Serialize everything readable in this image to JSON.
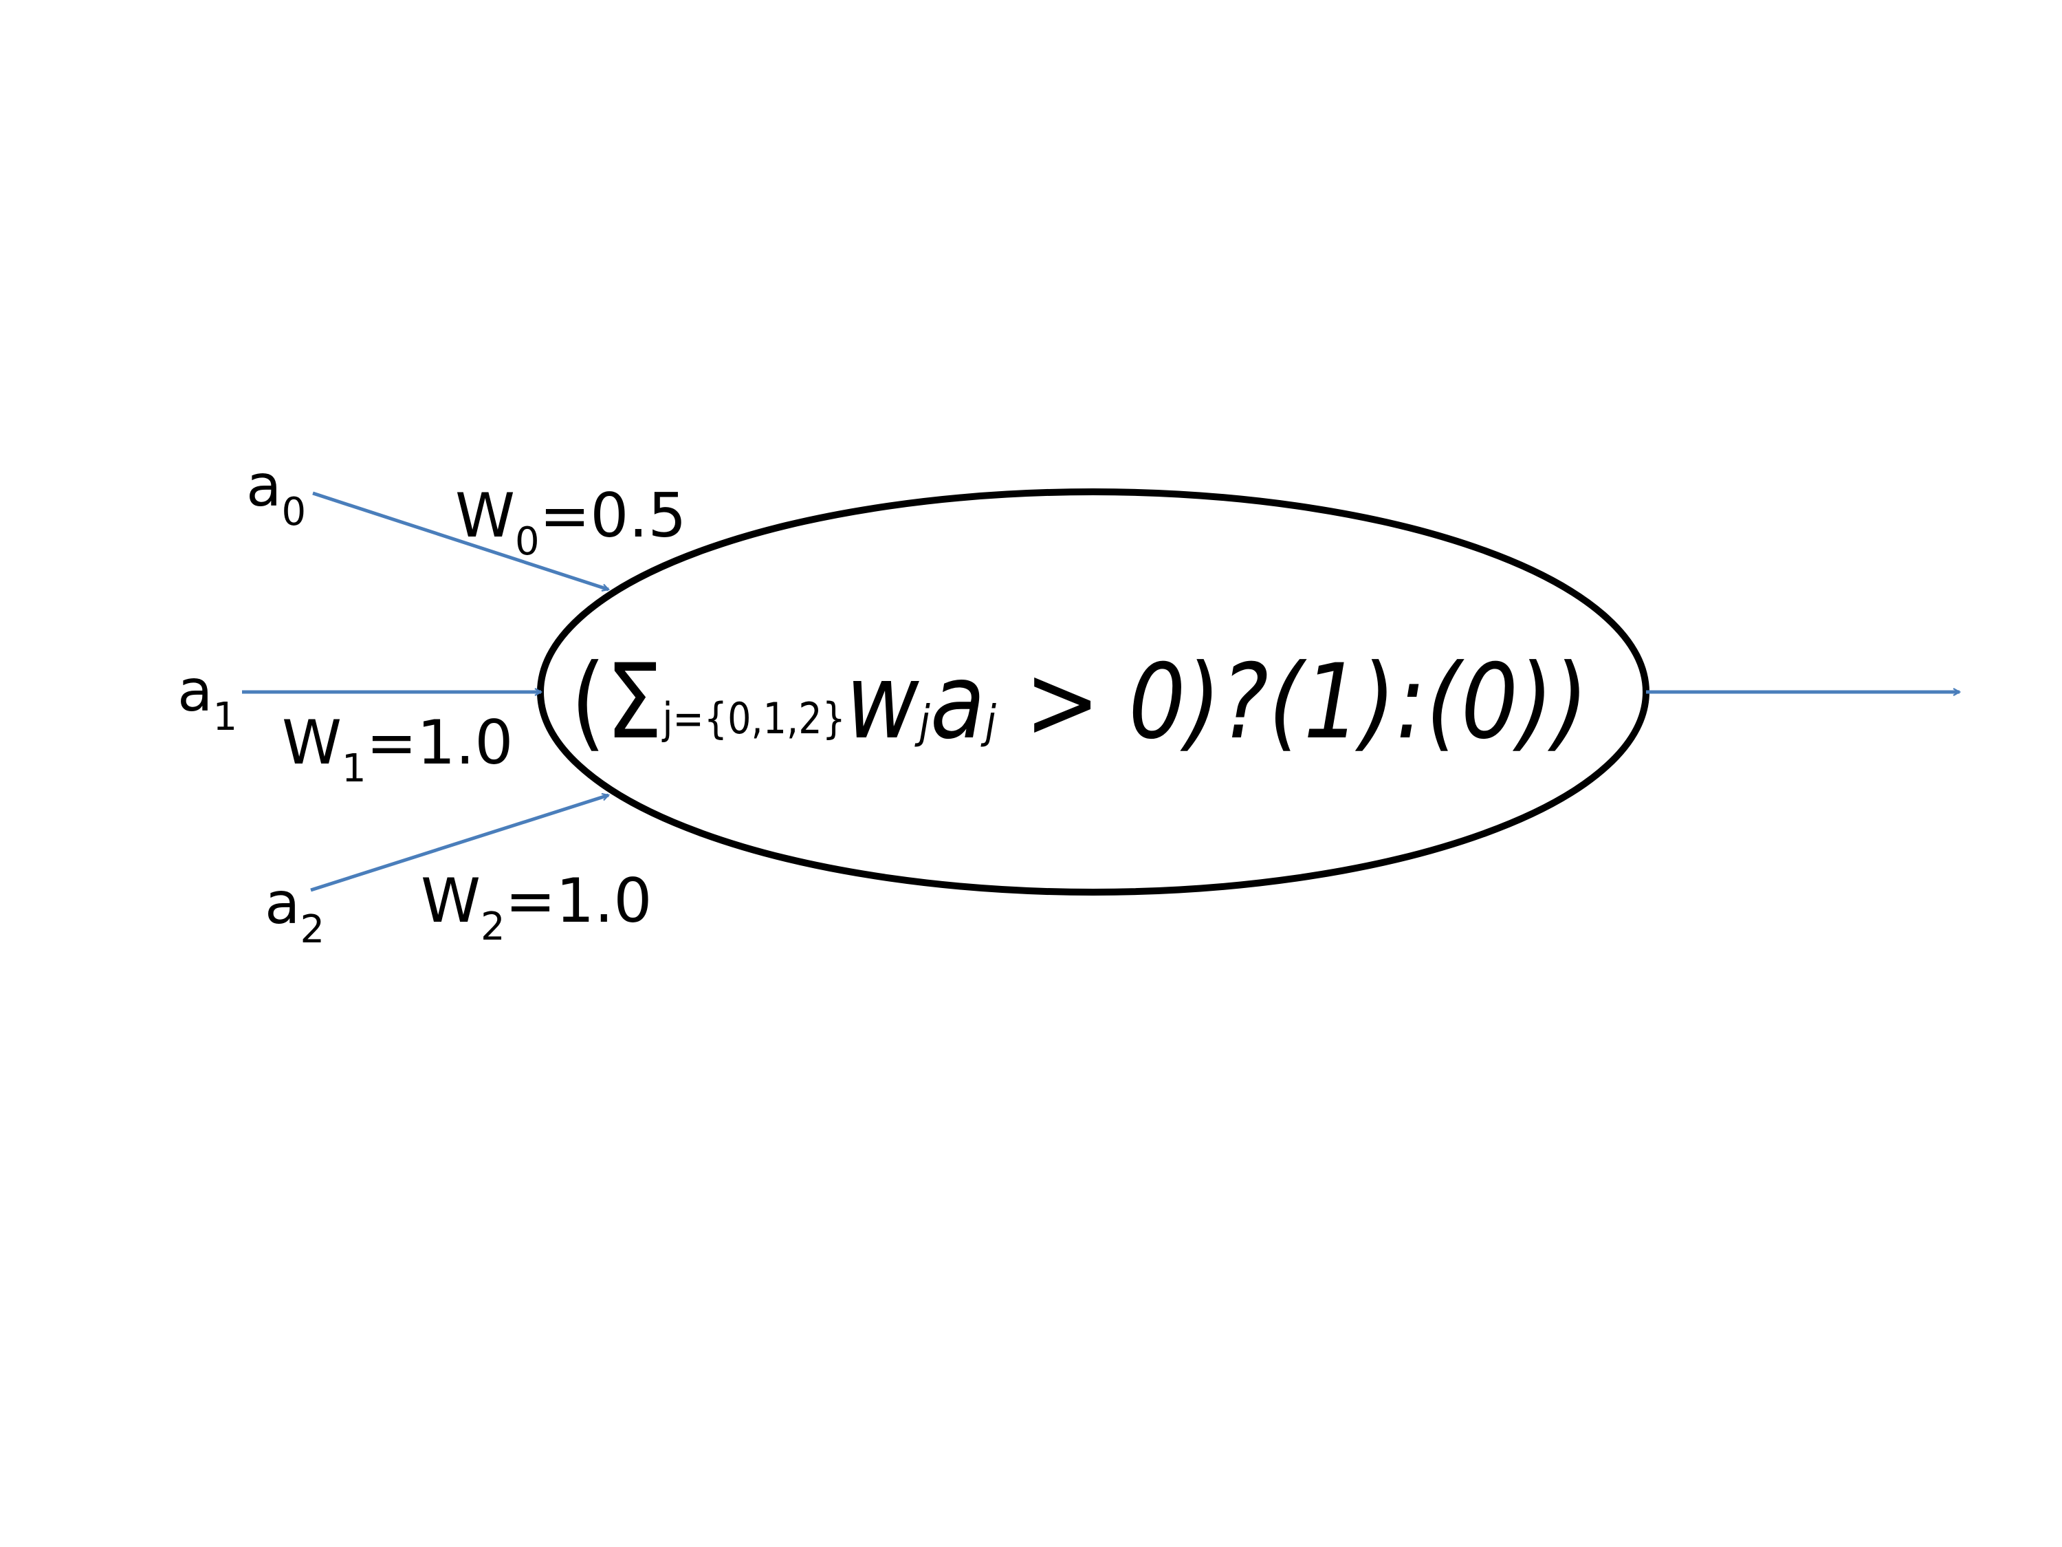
{
  "inputs": [
    {
      "label": "a",
      "subscript": "0"
    },
    {
      "label": "a",
      "subscript": "1"
    },
    {
      "label": "a",
      "subscript": "2"
    }
  ],
  "weights": [
    {
      "label": "W",
      "subscript": "0",
      "value": "=0.5"
    },
    {
      "label": "W",
      "subscript": "1",
      "value": "=1.0"
    },
    {
      "label": "W",
      "subscript": "2",
      "value": "=1.0"
    }
  ],
  "neuron": {
    "open": "(",
    "sigma": "Σ",
    "sum_index": "j={0,1,2}",
    "weight_symbol": "w",
    "weight_index": "j",
    "input_symbol": "a",
    "input_index": "j",
    "comparison": " > 0)?(1):(0))"
  },
  "colors": {
    "arrow": "#4A7EBB",
    "ellipse_stroke": "#000000",
    "text": "#000000"
  }
}
